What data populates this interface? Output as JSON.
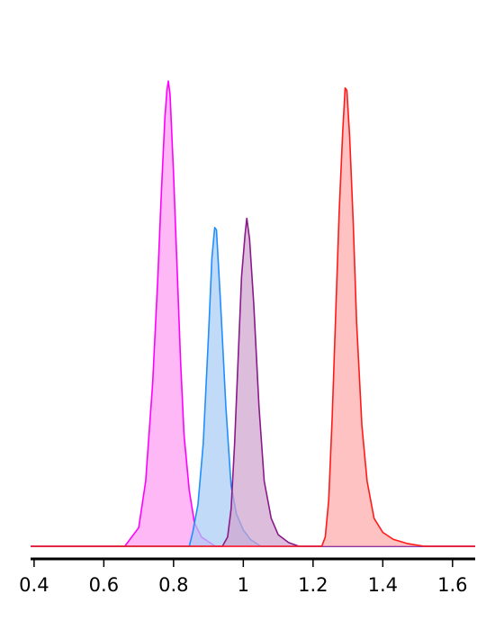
{
  "chart_data": {
    "type": "area",
    "title": "",
    "xlabel": "",
    "ylabel": "",
    "xlim": [
      0.39,
      1.665
    ],
    "ylim": [
      0,
      1.0
    ],
    "grid": false,
    "legend": "none",
    "x_ticks": [
      {
        "value": 0.4,
        "label": "0.4"
      },
      {
        "value": 0.6,
        "label": "0.6"
      },
      {
        "value": 0.8,
        "label": "0.8"
      },
      {
        "value": 1.0,
        "label": "1"
      },
      {
        "value": 1.2,
        "label": "1.2"
      },
      {
        "value": 1.4,
        "label": "1.4"
      },
      {
        "value": 1.6,
        "label": "1.6"
      }
    ],
    "series": [
      {
        "color": "#ff00ff",
        "fill": "#ff9cf2",
        "points": [
          [
            0.39,
            0.0
          ],
          [
            0.66,
            0.0
          ],
          [
            0.67,
            0.01
          ],
          [
            0.7,
            0.04
          ],
          [
            0.72,
            0.14
          ],
          [
            0.74,
            0.35
          ],
          [
            0.755,
            0.58
          ],
          [
            0.765,
            0.76
          ],
          [
            0.775,
            0.92
          ],
          [
            0.781,
            0.98
          ],
          [
            0.785,
            1.0
          ],
          [
            0.79,
            0.97
          ],
          [
            0.8,
            0.8
          ],
          [
            0.81,
            0.6
          ],
          [
            0.82,
            0.4
          ],
          [
            0.83,
            0.24
          ],
          [
            0.845,
            0.12
          ],
          [
            0.86,
            0.05
          ],
          [
            0.88,
            0.02
          ],
          [
            0.92,
            0.0
          ],
          [
            1.665,
            0.0
          ]
        ]
      },
      {
        "color": "#1f8fff",
        "fill": "#a9ccf5",
        "points": [
          [
            0.39,
            0.0
          ],
          [
            0.845,
            0.0
          ],
          [
            0.855,
            0.03
          ],
          [
            0.87,
            0.09
          ],
          [
            0.885,
            0.22
          ],
          [
            0.9,
            0.45
          ],
          [
            0.91,
            0.62
          ],
          [
            0.918,
            0.685
          ],
          [
            0.923,
            0.68
          ],
          [
            0.935,
            0.52
          ],
          [
            0.95,
            0.3
          ],
          [
            0.965,
            0.13
          ],
          [
            0.98,
            0.07
          ],
          [
            1.0,
            0.035
          ],
          [
            1.02,
            0.015
          ],
          [
            1.05,
            0.0
          ],
          [
            1.665,
            0.0
          ]
        ]
      },
      {
        "color": "#8a1a8a",
        "fill": "#cfa3cf",
        "points": [
          [
            0.39,
            0.0
          ],
          [
            0.94,
            0.0
          ],
          [
            0.955,
            0.02
          ],
          [
            0.965,
            0.08
          ],
          [
            0.975,
            0.22
          ],
          [
            0.985,
            0.4
          ],
          [
            0.995,
            0.58
          ],
          [
            1.005,
            0.67
          ],
          [
            1.01,
            0.705
          ],
          [
            1.018,
            0.66
          ],
          [
            1.03,
            0.52
          ],
          [
            1.045,
            0.3
          ],
          [
            1.06,
            0.14
          ],
          [
            1.08,
            0.06
          ],
          [
            1.1,
            0.025
          ],
          [
            1.13,
            0.008
          ],
          [
            1.16,
            0.0
          ],
          [
            1.665,
            0.0
          ]
        ]
      },
      {
        "color": "#ff1a1a",
        "fill": "#ffaaaa",
        "points": [
          [
            0.39,
            0.0
          ],
          [
            1.225,
            0.0
          ],
          [
            1.235,
            0.02
          ],
          [
            1.245,
            0.1
          ],
          [
            1.255,
            0.28
          ],
          [
            1.265,
            0.5
          ],
          [
            1.275,
            0.72
          ],
          [
            1.285,
            0.89
          ],
          [
            1.292,
            0.985
          ],
          [
            1.297,
            0.98
          ],
          [
            1.305,
            0.88
          ],
          [
            1.315,
            0.7
          ],
          [
            1.325,
            0.48
          ],
          [
            1.34,
            0.26
          ],
          [
            1.355,
            0.14
          ],
          [
            1.375,
            0.06
          ],
          [
            1.4,
            0.03
          ],
          [
            1.43,
            0.015
          ],
          [
            1.47,
            0.006
          ],
          [
            1.52,
            0.0
          ],
          [
            1.665,
            0.0
          ]
        ]
      }
    ]
  }
}
